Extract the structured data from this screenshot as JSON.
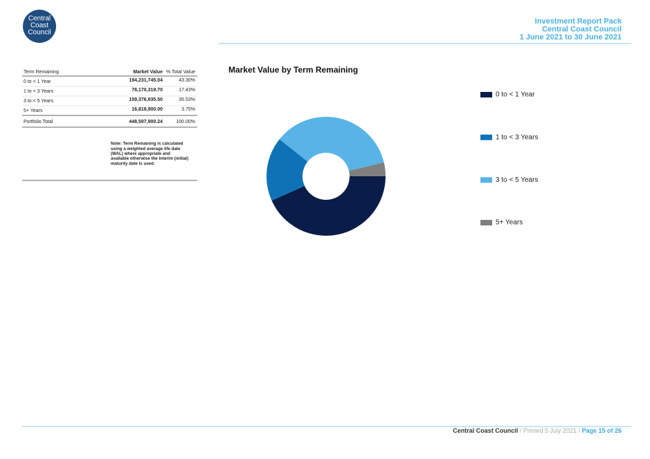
{
  "header": {
    "logo": [
      "Central",
      "Coast",
      "Council"
    ],
    "lines": [
      "Investment Report Pack",
      "Central Coast Council",
      "1 June 2021 to 30 June 2021"
    ]
  },
  "table": {
    "columns": [
      "Term Remaining",
      "Market Value",
      "% Total Value"
    ],
    "rows": [
      [
        "0 to < 1 Year",
        "194,231,745.04",
        "43.30%"
      ],
      [
        "1 to < 3 Years",
        "78,170,319.70",
        "17.43%"
      ],
      [
        "3 to < 5 Years",
        "159,376,935.50",
        "35.53%"
      ],
      [
        "5+ Years",
        "16,818,900.00",
        "3.75%"
      ]
    ],
    "total": [
      "Portfolio Total",
      "448,597,900.24",
      "100.00%"
    ]
  },
  "note": [
    "Note: Term Remaining is calculated",
    "using a weighted average life date",
    "(WAL) where appropriate and",
    "available otherwise the interim (initial)",
    "maturity date is used."
  ],
  "chart_data": {
    "type": "donut",
    "title": "Market Value by Term Remaining",
    "categories": [
      "0 to < 1 Year",
      "1 to < 3 Years",
      "3 to < 5 Years",
      "5+ Years"
    ],
    "values": [
      43.3,
      17.43,
      35.53,
      3.75
    ],
    "colors": [
      "#0a1c48",
      "#0f72b6",
      "#58b4e6",
      "#7f7f7f"
    ]
  },
  "footer": {
    "org": "Central Coast Council",
    "separator": "/",
    "printed": "Printed 5 July 2021",
    "page": "Page 15 of 26"
  }
}
